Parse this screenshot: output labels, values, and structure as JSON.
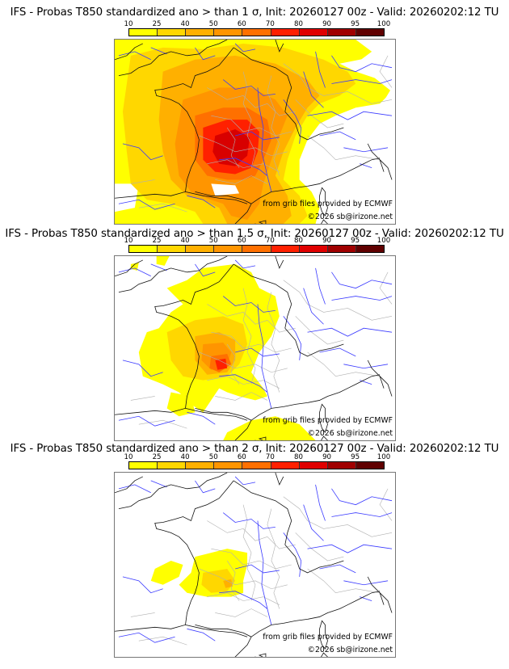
{
  "colorbar": {
    "ticks": [
      "10",
      "25",
      "40",
      "50",
      "60",
      "70",
      "80",
      "90",
      "95",
      "100"
    ],
    "colors": [
      "#ffff00",
      "#ffd700",
      "#ffb000",
      "#ff9500",
      "#ff7000",
      "#ff2000",
      "#e00000",
      "#a00000",
      "#600000"
    ]
  },
  "panels": [
    {
      "title": "IFS - Probas T850  standardized ano > than 1 σ, Init: 20260127 00z - Valid: 20260202:12 TU",
      "threshold": "1",
      "credit_source": "from grib files provided by ECMWF",
      "credit_copyright": "©2026 sb@irizone.net"
    },
    {
      "title": "IFS - Probas T850  standardized ano > than 1.5 σ, Init: 20260127 00z - Valid: 20260202:12 TU",
      "threshold": "1.5",
      "credit_source": "from grib files provided by ECMWF",
      "credit_copyright": "©2026 sb@irizone.net"
    },
    {
      "title": "IFS - Probas T850  standardized ano > than 2 σ, Init: 20260127 00z - Valid: 20260202:12 TU",
      "threshold": "2",
      "credit_source": "from grib files provided by ECMWF",
      "credit_copyright": "©2026 sb@irizone.net"
    }
  ],
  "map_colors": {
    "coast": "#000000",
    "rivers": "#3030ff",
    "borders": "#aaaaaa"
  }
}
